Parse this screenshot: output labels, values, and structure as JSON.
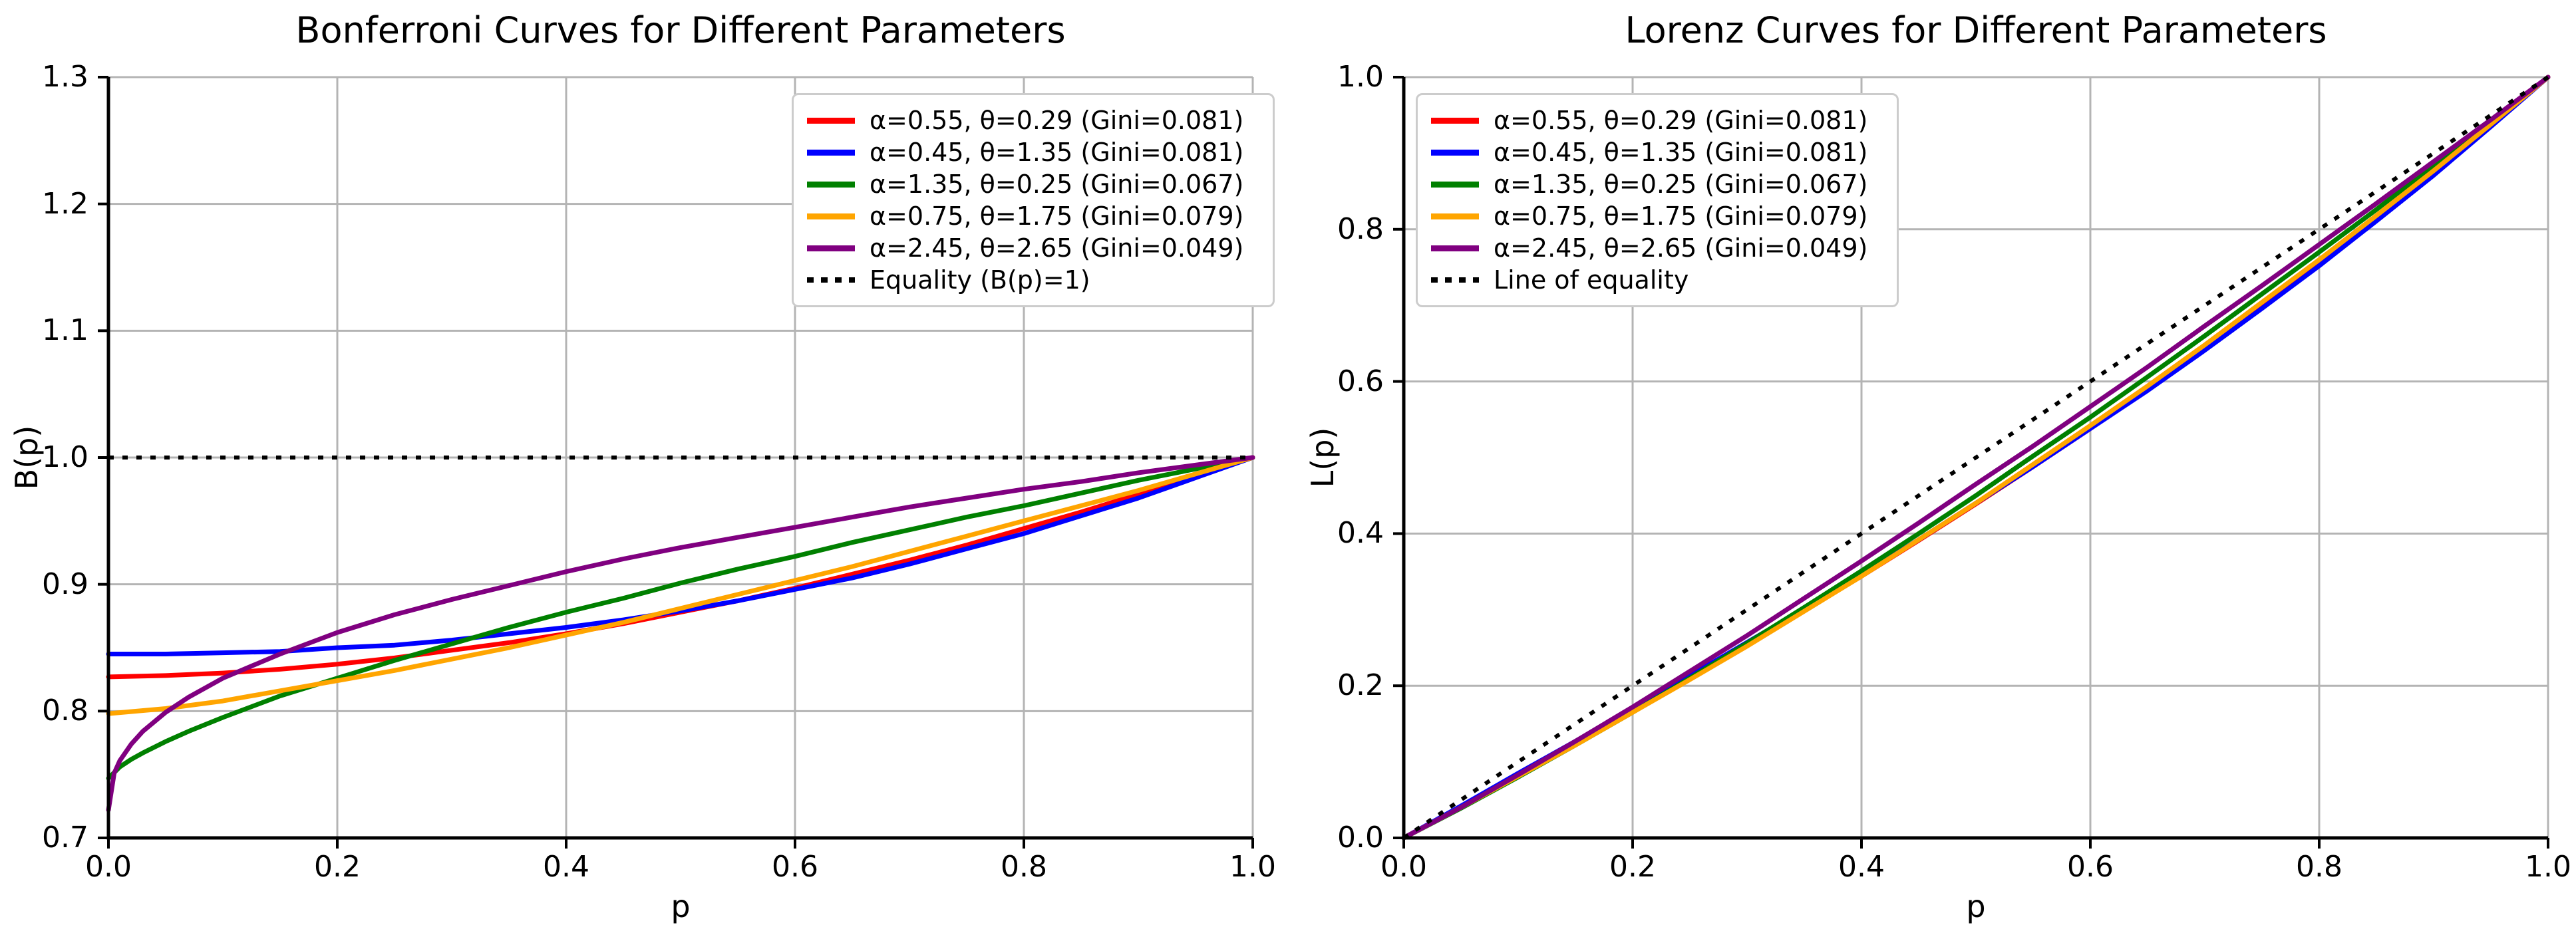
{
  "figure": {
    "background": "#ffffff",
    "grid_color": "#b4b4b4",
    "spine_color": "#000000",
    "text_color": "#000000"
  },
  "chart_data": [
    {
      "type": "line",
      "title": "Bonferroni Curves for Different Parameters",
      "xlabel": "p",
      "ylabel": "B(p)",
      "xlim": [
        0,
        1
      ],
      "ylim": [
        0.7,
        1.3
      ],
      "xtick_values": [
        0,
        0.2,
        0.4,
        0.6,
        0.8,
        1.0
      ],
      "xtick_labels": [
        "0.0",
        "0.2",
        "0.4",
        "0.6",
        "0.8",
        "1.0"
      ],
      "ytick_values": [
        0.7,
        0.8,
        0.9,
        1.0,
        1.1,
        1.2,
        1.3
      ],
      "ytick_labels": [
        "0.7",
        "0.8",
        "0.9",
        "1.0",
        "1.1",
        "1.2",
        "1.3"
      ],
      "grid": true,
      "legend_position": "upper-right",
      "series": [
        {
          "name": "α=0.55, θ=0.29 (Gini=0.081)",
          "alpha": 0.55,
          "theta": 0.29,
          "gini": 0.081,
          "color": "#ff0000",
          "style": "solid",
          "points": [
            [
              0,
              0.827
            ],
            [
              0.05,
              0.828
            ],
            [
              0.1,
              0.83
            ],
            [
              0.15,
              0.833
            ],
            [
              0.2,
              0.837
            ],
            [
              0.25,
              0.842
            ],
            [
              0.3,
              0.848
            ],
            [
              0.35,
              0.854
            ],
            [
              0.4,
              0.861
            ],
            [
              0.45,
              0.869
            ],
            [
              0.5,
              0.878
            ],
            [
              0.55,
              0.887
            ],
            [
              0.6,
              0.897
            ],
            [
              0.65,
              0.908
            ],
            [
              0.7,
              0.919
            ],
            [
              0.75,
              0.931
            ],
            [
              0.8,
              0.944
            ],
            [
              0.85,
              0.957
            ],
            [
              0.9,
              0.971
            ],
            [
              0.95,
              0.985
            ],
            [
              1,
              1
            ]
          ]
        },
        {
          "name": "α=0.45, θ=1.35 (Gini=0.081)",
          "alpha": 0.45,
          "theta": 1.35,
          "gini": 0.081,
          "color": "#0000ff",
          "style": "solid",
          "points": [
            [
              0,
              0.845
            ],
            [
              0.05,
              0.845
            ],
            [
              0.1,
              0.846
            ],
            [
              0.15,
              0.847
            ],
            [
              0.2,
              0.85
            ],
            [
              0.25,
              0.852
            ],
            [
              0.3,
              0.856
            ],
            [
              0.35,
              0.861
            ],
            [
              0.4,
              0.866
            ],
            [
              0.45,
              0.872
            ],
            [
              0.5,
              0.879
            ],
            [
              0.55,
              0.887
            ],
            [
              0.6,
              0.896
            ],
            [
              0.65,
              0.905
            ],
            [
              0.7,
              0.916
            ],
            [
              0.75,
              0.928
            ],
            [
              0.8,
              0.94
            ],
            [
              0.85,
              0.954
            ],
            [
              0.9,
              0.968
            ],
            [
              0.95,
              0.984
            ],
            [
              1,
              1
            ]
          ]
        },
        {
          "name": "α=1.35, θ=0.25 (Gini=0.067)",
          "alpha": 1.35,
          "theta": 0.25,
          "gini": 0.067,
          "color": "#008000",
          "style": "solid",
          "points": [
            [
              0,
              0.747
            ],
            [
              0.01,
              0.756
            ],
            [
              0.02,
              0.762
            ],
            [
              0.03,
              0.767
            ],
            [
              0.05,
              0.776
            ],
            [
              0.07,
              0.784
            ],
            [
              0.1,
              0.795
            ],
            [
              0.15,
              0.812
            ],
            [
              0.2,
              0.826
            ],
            [
              0.25,
              0.84
            ],
            [
              0.3,
              0.853
            ],
            [
              0.35,
              0.866
            ],
            [
              0.4,
              0.878
            ],
            [
              0.45,
              0.889
            ],
            [
              0.5,
              0.901
            ],
            [
              0.55,
              0.912
            ],
            [
              0.6,
              0.922
            ],
            [
              0.65,
              0.933
            ],
            [
              0.7,
              0.943
            ],
            [
              0.75,
              0.953
            ],
            [
              0.8,
              0.962
            ],
            [
              0.85,
              0.972
            ],
            [
              0.9,
              0.982
            ],
            [
              0.95,
              0.991
            ],
            [
              1,
              1
            ]
          ]
        },
        {
          "name": "α=0.75, θ=1.75 (Gini=0.079)",
          "alpha": 0.75,
          "theta": 1.75,
          "gini": 0.079,
          "color": "#ffa500",
          "style": "solid",
          "points": [
            [
              0,
              0.798
            ],
            [
              0.05,
              0.802
            ],
            [
              0.1,
              0.808
            ],
            [
              0.15,
              0.816
            ],
            [
              0.2,
              0.824
            ],
            [
              0.25,
              0.832
            ],
            [
              0.3,
              0.841
            ],
            [
              0.35,
              0.85
            ],
            [
              0.4,
              0.86
            ],
            [
              0.45,
              0.87
            ],
            [
              0.5,
              0.881
            ],
            [
              0.55,
              0.892
            ],
            [
              0.6,
              0.903
            ],
            [
              0.65,
              0.914
            ],
            [
              0.7,
              0.926
            ],
            [
              0.75,
              0.938
            ],
            [
              0.8,
              0.95
            ],
            [
              0.85,
              0.962
            ],
            [
              0.9,
              0.974
            ],
            [
              0.95,
              0.987
            ],
            [
              1,
              1
            ]
          ]
        },
        {
          "name": "α=2.45, θ=2.65 (Gini=0.049)",
          "alpha": 2.45,
          "theta": 2.65,
          "gini": 0.049,
          "color": "#800080",
          "style": "solid",
          "points": [
            [
              0,
              0.722
            ],
            [
              0.005,
              0.751
            ],
            [
              0.01,
              0.761
            ],
            [
              0.02,
              0.774
            ],
            [
              0.03,
              0.784
            ],
            [
              0.05,
              0.799
            ],
            [
              0.07,
              0.811
            ],
            [
              0.1,
              0.826
            ],
            [
              0.15,
              0.845
            ],
            [
              0.2,
              0.862
            ],
            [
              0.25,
              0.876
            ],
            [
              0.3,
              0.888
            ],
            [
              0.35,
              0.899
            ],
            [
              0.4,
              0.91
            ],
            [
              0.45,
              0.92
            ],
            [
              0.5,
              0.929
            ],
            [
              0.55,
              0.937
            ],
            [
              0.6,
              0.945
            ],
            [
              0.65,
              0.953
            ],
            [
              0.7,
              0.961
            ],
            [
              0.75,
              0.968
            ],
            [
              0.8,
              0.975
            ],
            [
              0.85,
              0.981
            ],
            [
              0.9,
              0.988
            ],
            [
              0.95,
              0.994
            ],
            [
              1,
              1
            ]
          ]
        },
        {
          "name": "Equality (B(p)=1)",
          "color": "#000000",
          "style": "dotted",
          "points": [
            [
              0,
              1
            ],
            [
              1,
              1
            ]
          ]
        }
      ]
    },
    {
      "type": "line",
      "title": "Lorenz Curves for Different Parameters",
      "xlabel": "p",
      "ylabel": "L(p)",
      "xlim": [
        0,
        1
      ],
      "ylim": [
        0,
        1
      ],
      "xtick_values": [
        0,
        0.2,
        0.4,
        0.6,
        0.8,
        1.0
      ],
      "xtick_labels": [
        "0.0",
        "0.2",
        "0.4",
        "0.6",
        "0.8",
        "1.0"
      ],
      "ytick_values": [
        0,
        0.2,
        0.4,
        0.6,
        0.8,
        1.0
      ],
      "ytick_labels": [
        "0.0",
        "0.2",
        "0.4",
        "0.6",
        "0.8",
        "1.0"
      ],
      "grid": true,
      "legend_position": "upper-left",
      "series": [
        {
          "name": "α=0.55, θ=0.29 (Gini=0.081)",
          "alpha": 0.55,
          "theta": 0.29,
          "gini": 0.081,
          "color": "#ff0000",
          "style": "solid",
          "points": [
            [
              0,
              0
            ],
            [
              0.05,
              0.041
            ],
            [
              0.1,
              0.083
            ],
            [
              0.15,
              0.125
            ],
            [
              0.2,
              0.167
            ],
            [
              0.25,
              0.211
            ],
            [
              0.3,
              0.254
            ],
            [
              0.35,
              0.299
            ],
            [
              0.4,
              0.344
            ],
            [
              0.45,
              0.391
            ],
            [
              0.5,
              0.439
            ],
            [
              0.55,
              0.488
            ],
            [
              0.6,
              0.538
            ],
            [
              0.65,
              0.59
            ],
            [
              0.7,
              0.643
            ],
            [
              0.75,
              0.698
            ],
            [
              0.8,
              0.755
            ],
            [
              0.85,
              0.814
            ],
            [
              0.9,
              0.874
            ],
            [
              0.95,
              0.936
            ],
            [
              1,
              1
            ]
          ]
        },
        {
          "name": "α=0.45, θ=1.35 (Gini=0.081)",
          "alpha": 0.45,
          "theta": 1.35,
          "gini": 0.081,
          "color": "#0000ff",
          "style": "solid",
          "points": [
            [
              0,
              0
            ],
            [
              0.05,
              0.042
            ],
            [
              0.1,
              0.085
            ],
            [
              0.15,
              0.127
            ],
            [
              0.2,
              0.17
            ],
            [
              0.25,
              0.213
            ],
            [
              0.3,
              0.257
            ],
            [
              0.35,
              0.301
            ],
            [
              0.4,
              0.346
            ],
            [
              0.45,
              0.392
            ],
            [
              0.5,
              0.44
            ],
            [
              0.55,
              0.488
            ],
            [
              0.6,
              0.538
            ],
            [
              0.65,
              0.588
            ],
            [
              0.7,
              0.641
            ],
            [
              0.75,
              0.696
            ],
            [
              0.8,
              0.752
            ],
            [
              0.85,
              0.811
            ],
            [
              0.9,
              0.871
            ],
            [
              0.95,
              0.935
            ],
            [
              1,
              1
            ]
          ]
        },
        {
          "name": "α=1.35, θ=0.25 (Gini=0.067)",
          "alpha": 1.35,
          "theta": 0.25,
          "gini": 0.067,
          "color": "#008000",
          "style": "solid",
          "points": [
            [
              0,
              0
            ],
            [
              0.05,
              0.039
            ],
            [
              0.1,
              0.08
            ],
            [
              0.15,
              0.122
            ],
            [
              0.2,
              0.165
            ],
            [
              0.25,
              0.21
            ],
            [
              0.3,
              0.256
            ],
            [
              0.35,
              0.303
            ],
            [
              0.4,
              0.351
            ],
            [
              0.45,
              0.4
            ],
            [
              0.5,
              0.45
            ],
            [
              0.55,
              0.502
            ],
            [
              0.6,
              0.553
            ],
            [
              0.65,
              0.606
            ],
            [
              0.7,
              0.66
            ],
            [
              0.75,
              0.715
            ],
            [
              0.8,
              0.77
            ],
            [
              0.85,
              0.826
            ],
            [
              0.9,
              0.884
            ],
            [
              0.95,
              0.941
            ],
            [
              1,
              1
            ]
          ]
        },
        {
          "name": "α=0.75, θ=1.75 (Gini=0.079)",
          "alpha": 0.75,
          "theta": 1.75,
          "gini": 0.079,
          "color": "#ffa500",
          "style": "solid",
          "points": [
            [
              0,
              0
            ],
            [
              0.05,
              0.04
            ],
            [
              0.1,
              0.081
            ],
            [
              0.15,
              0.122
            ],
            [
              0.2,
              0.165
            ],
            [
              0.25,
              0.208
            ],
            [
              0.3,
              0.252
            ],
            [
              0.35,
              0.298
            ],
            [
              0.4,
              0.344
            ],
            [
              0.45,
              0.392
            ],
            [
              0.5,
              0.44
            ],
            [
              0.55,
              0.491
            ],
            [
              0.6,
              0.542
            ],
            [
              0.65,
              0.594
            ],
            [
              0.7,
              0.648
            ],
            [
              0.75,
              0.704
            ],
            [
              0.8,
              0.76
            ],
            [
              0.85,
              0.818
            ],
            [
              0.9,
              0.877
            ],
            [
              0.95,
              0.938
            ],
            [
              1,
              1
            ]
          ]
        },
        {
          "name": "α=2.45, θ=2.65 (Gini=0.049)",
          "alpha": 2.45,
          "theta": 2.65,
          "gini": 0.049,
          "color": "#800080",
          "style": "solid",
          "points": [
            [
              0,
              0
            ],
            [
              0.05,
              0.04
            ],
            [
              0.1,
              0.083
            ],
            [
              0.15,
              0.127
            ],
            [
              0.2,
              0.172
            ],
            [
              0.25,
              0.219
            ],
            [
              0.3,
              0.266
            ],
            [
              0.35,
              0.315
            ],
            [
              0.4,
              0.364
            ],
            [
              0.45,
              0.414
            ],
            [
              0.5,
              0.465
            ],
            [
              0.55,
              0.515
            ],
            [
              0.6,
              0.567
            ],
            [
              0.65,
              0.619
            ],
            [
              0.7,
              0.673
            ],
            [
              0.75,
              0.726
            ],
            [
              0.8,
              0.78
            ],
            [
              0.85,
              0.834
            ],
            [
              0.9,
              0.889
            ],
            [
              0.95,
              0.944
            ],
            [
              1,
              1
            ]
          ]
        },
        {
          "name": "Line of equality",
          "color": "#000000",
          "style": "dotted",
          "points": [
            [
              0,
              0
            ],
            [
              1,
              1
            ]
          ]
        }
      ]
    }
  ]
}
